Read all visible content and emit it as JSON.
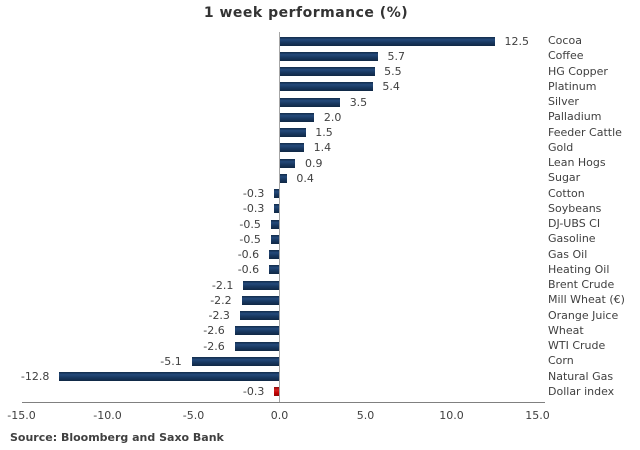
{
  "title": "1 week performance (%)",
  "source": "Source: Bloomberg and Saxo Bank",
  "chart_data": {
    "type": "bar",
    "orientation": "horizontal",
    "title": "1 week performance (%)",
    "categories": [
      "Cocoa",
      "Coffee",
      "HG Copper",
      "Platinum",
      "Silver",
      "Palladium",
      "Feeder Cattle",
      "Gold",
      "Lean Hogs",
      "Sugar",
      "Cotton",
      "Soybeans",
      "DJ-UBS CI",
      "Gasoline",
      "Gas Oil",
      "Heating Oil",
      "Brent Crude",
      "Mill Wheat (€)",
      "Orange Juice",
      "Wheat",
      "WTI Crude",
      "Corn",
      "Natural Gas",
      "Dollar index"
    ],
    "values": [
      12.5,
      5.7,
      5.5,
      5.4,
      3.5,
      2.0,
      1.5,
      1.4,
      0.9,
      0.4,
      -0.3,
      -0.3,
      -0.5,
      -0.5,
      -0.6,
      -0.6,
      -2.1,
      -2.2,
      -2.3,
      -2.6,
      -2.6,
      -5.1,
      -12.8,
      -0.3
    ],
    "value_labels": [
      "12.5",
      "5.7",
      "5.5",
      "5.4",
      "3.5",
      "2.0",
      "1.5",
      "1.4",
      "0.9",
      "0.4",
      "-0.3",
      "-0.3",
      "-0.5",
      "-0.5",
      "-0.6",
      "-0.6",
      "-2.1",
      "-2.2",
      "-2.3",
      "-2.6",
      "-2.6",
      "-5.1",
      "-12.8",
      "-0.3"
    ],
    "xlim": [
      -15.0,
      15.0
    ],
    "x_tick_values": [
      -15,
      -10,
      -5,
      0,
      5,
      10,
      15
    ],
    "x_tick_labels": [
      "-15.0",
      "-10.0",
      "-5.0",
      "0.0",
      "5.0",
      "10.0",
      "15.0"
    ],
    "bar_color": "#17365D",
    "highlight_color": "#C00000",
    "highlight_category": "Dollar index",
    "text_color": "#404040",
    "axis_color": "#808080",
    "grid": false,
    "legend_position": "none",
    "category_labels_position": "right"
  }
}
